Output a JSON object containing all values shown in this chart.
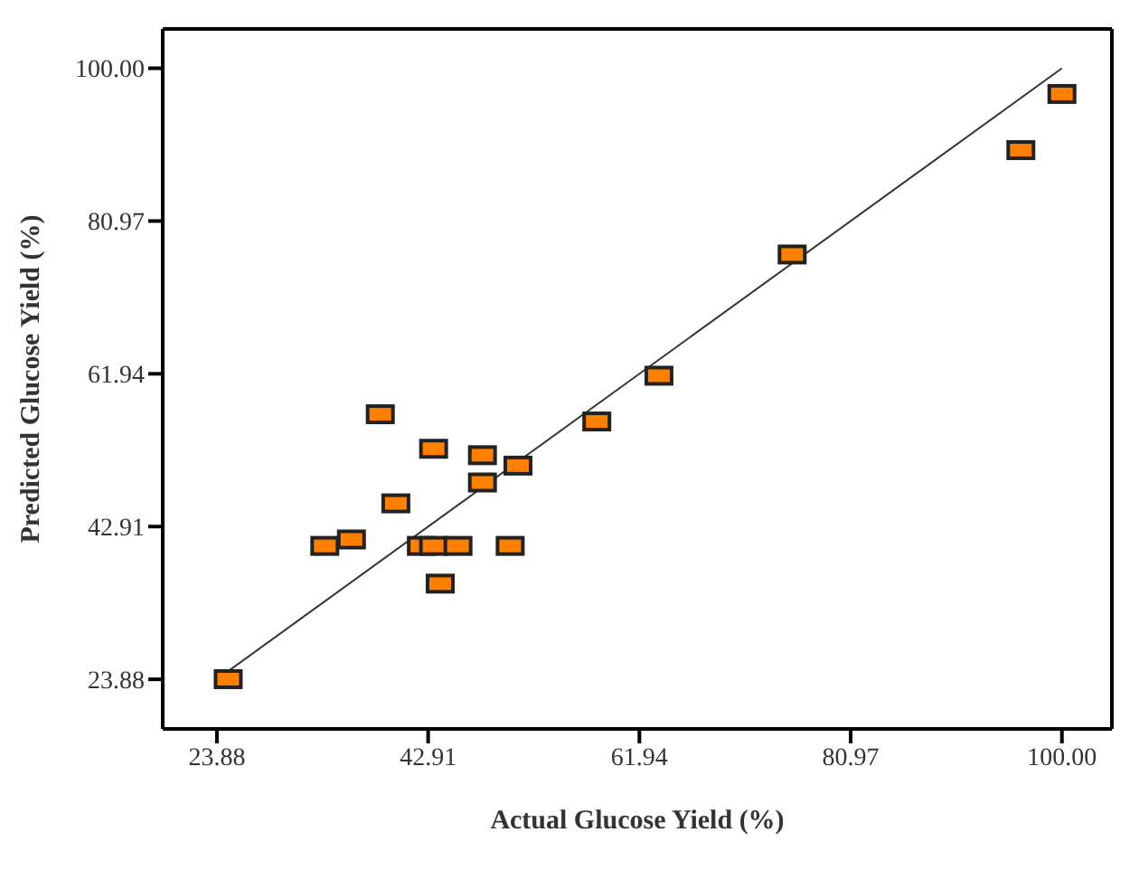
{
  "chart_data": {
    "type": "scatter",
    "xlabel": "Actual Glucose Yield (%)",
    "ylabel": "Predicted Glucose Yield (%)",
    "xlim": [
      19,
      104.5
    ],
    "ylim": [
      17.7,
      104.9
    ],
    "xticks": [
      {
        "value": 23.88,
        "label": "23.88"
      },
      {
        "value": 42.91,
        "label": "42.91"
      },
      {
        "value": 61.94,
        "label": "61.94"
      },
      {
        "value": 80.97,
        "label": "80.97"
      },
      {
        "value": 100,
        "label": "100.00"
      }
    ],
    "yticks": [
      {
        "value": 23.88,
        "label": "23.88"
      },
      {
        "value": 42.91,
        "label": "42.91"
      },
      {
        "value": 61.94,
        "label": "61.94"
      },
      {
        "value": 80.97,
        "label": "80.97"
      },
      {
        "value": 100,
        "label": "100.00"
      }
    ],
    "marker": "square",
    "series": [
      {
        "color": "#ff8000",
        "x": [
          24.9,
          33.6,
          36.0,
          38.6,
          40.0,
          42.3,
          43.4,
          43.4,
          44.0,
          45.6,
          47.8,
          47.8,
          50.3,
          51.0,
          58.1,
          63.7,
          75.7,
          96.3,
          100.0
        ],
        "values": [
          23.9,
          40.5,
          41.3,
          56.9,
          45.8,
          40.5,
          40.5,
          52.6,
          35.8,
          40.5,
          51.8,
          48.4,
          40.5,
          50.5,
          56.0,
          61.7,
          76.8,
          89.8,
          96.8
        ]
      },
      {
        "type": "line",
        "color": "#333333",
        "x": [
          23.9,
          100
        ],
        "values": [
          23.9,
          100
        ],
        "marker": "none"
      }
    ]
  }
}
